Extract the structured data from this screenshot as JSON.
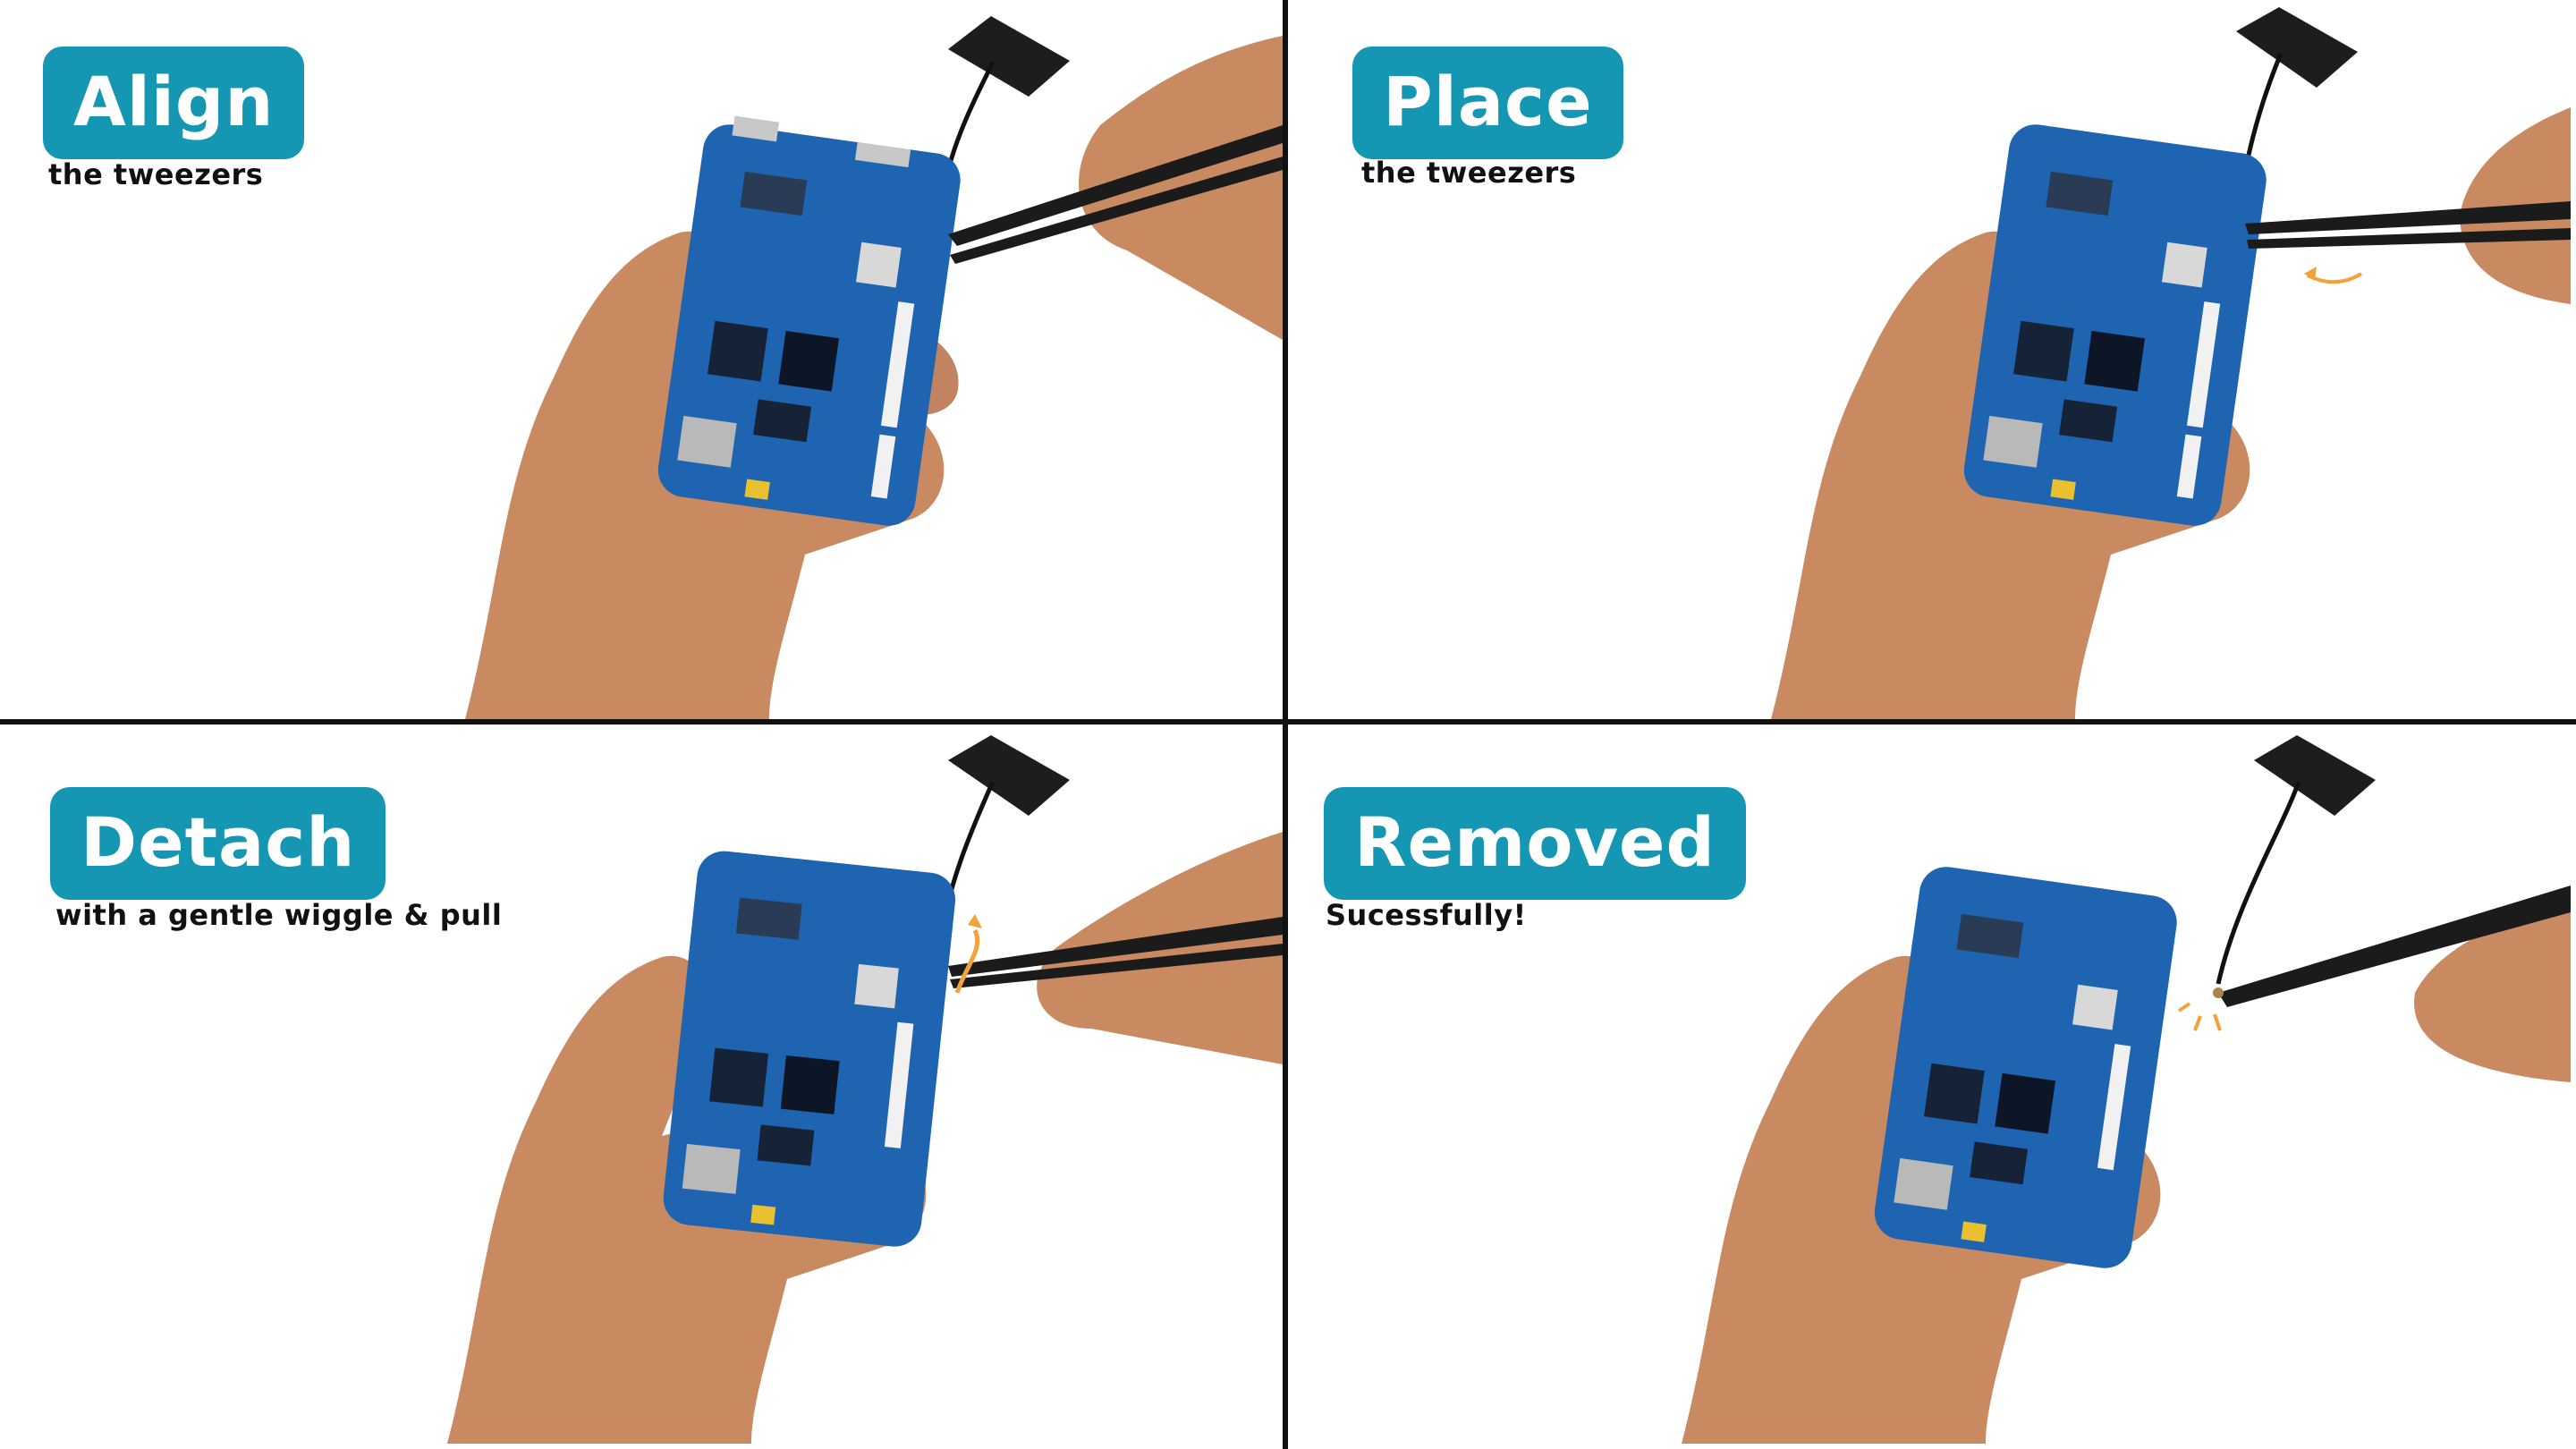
{
  "panels": [
    {
      "title": "Align",
      "subtitle": "the tweezers"
    },
    {
      "title": "Place",
      "subtitle": "the tweezers"
    },
    {
      "title": "Detach",
      "subtitle": "with a gentle wiggle & pull"
    },
    {
      "title": "Removed",
      "subtitle": "Sucessfully!"
    }
  ],
  "colors": {
    "badge": "#1597b3",
    "board": "#1f64b0",
    "skin": "#c98a62",
    "tweezers": "#1b1b1b",
    "accent_arrow": "#f2a23a"
  }
}
